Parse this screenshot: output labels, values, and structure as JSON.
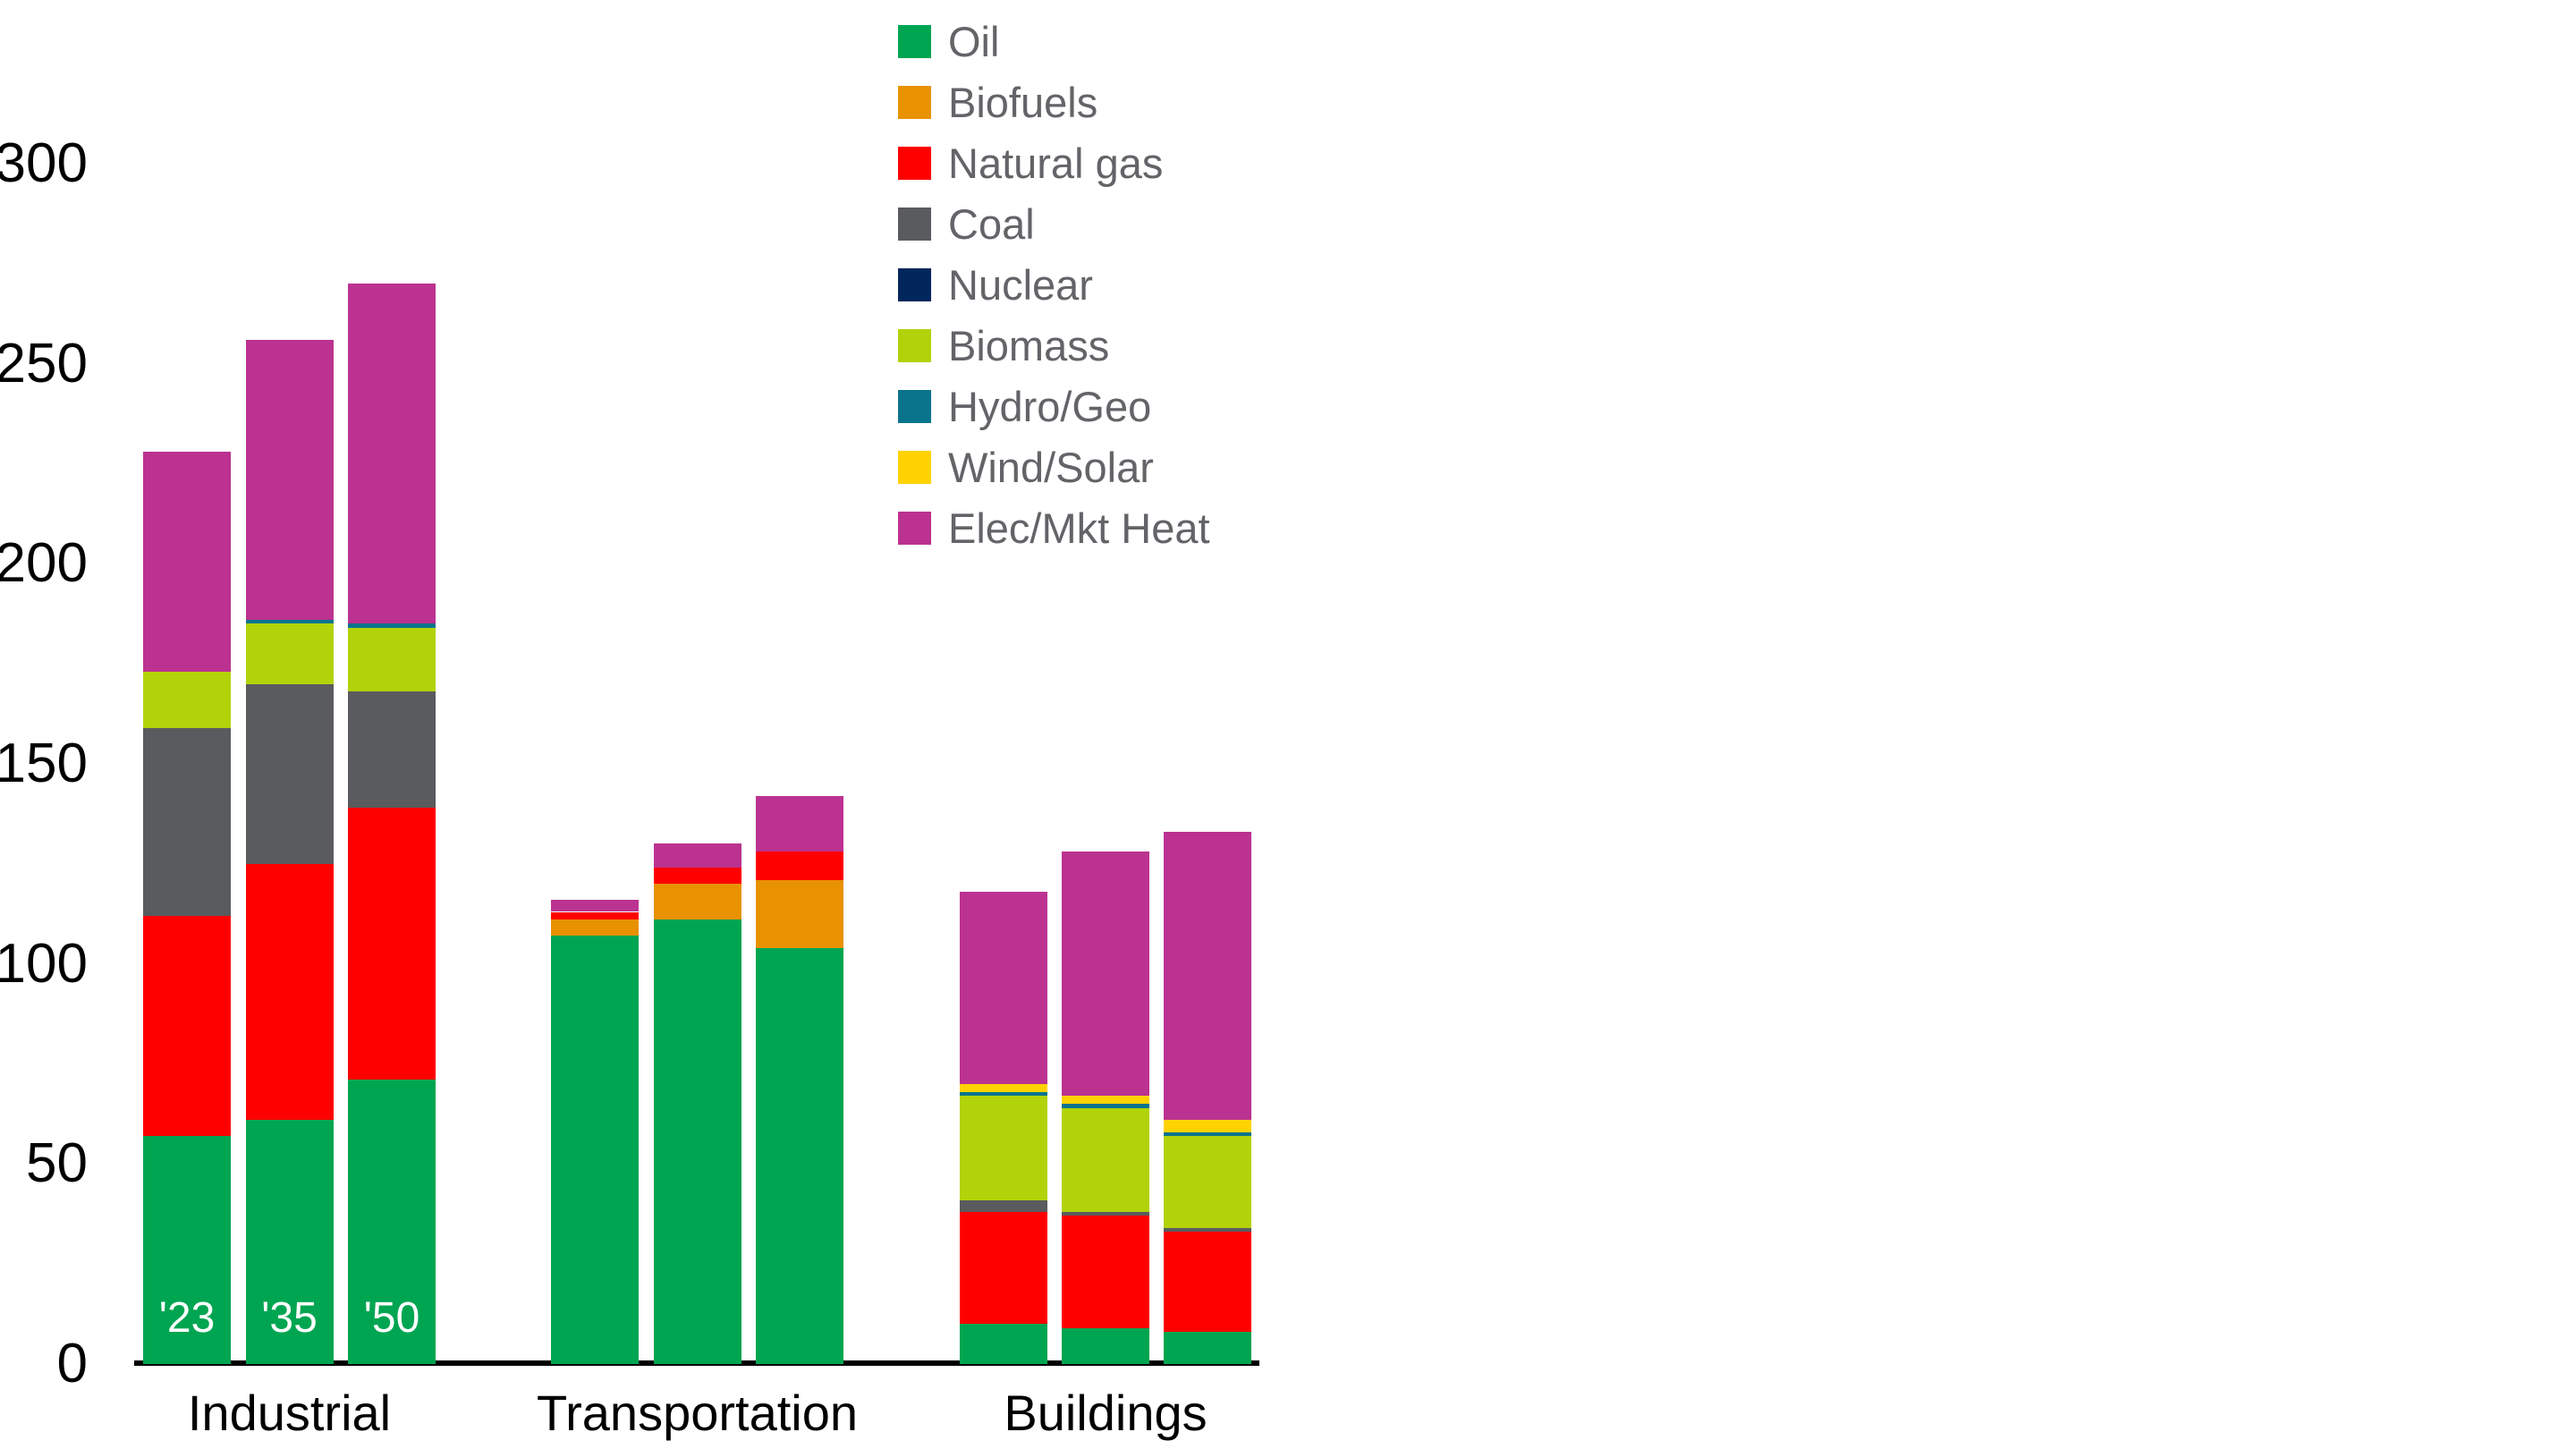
{
  "chart_data": {
    "type": "bar",
    "stacked": true,
    "grid": false,
    "legend_position": "top-center",
    "ylim": [
      0,
      300
    ],
    "yticks": [
      "0",
      "50",
      "100",
      "150",
      "200",
      "250",
      "300"
    ],
    "categories": [
      "Industrial",
      "Transportation",
      "Buildings"
    ],
    "bar_labels": [
      "'23",
      "'35",
      "'50"
    ],
    "bar_labels_visible_on_categories": [
      "Industrial"
    ],
    "series": [
      {
        "name": "Oil",
        "color": "#00A551",
        "values": [
          [
            57,
            61,
            71
          ],
          [
            107,
            111,
            104
          ],
          [
            10,
            9,
            8
          ]
        ]
      },
      {
        "name": "Biofuels",
        "color": "#E89202",
        "values": [
          [
            0,
            0,
            0
          ],
          [
            4,
            9,
            17
          ],
          [
            0,
            0,
            0
          ]
        ]
      },
      {
        "name": "Natural gas",
        "color": "#FF0000",
        "values": [
          [
            55,
            64,
            68
          ],
          [
            2,
            4,
            7
          ],
          [
            28,
            28,
            25
          ]
        ]
      },
      {
        "name": "Coal",
        "color": "#5A5B5E",
        "values": [
          [
            47,
            45,
            29
          ],
          [
            0,
            0,
            0
          ],
          [
            3,
            1,
            1
          ]
        ]
      },
      {
        "name": "Nuclear",
        "color": "#00265C",
        "values": [
          [
            0,
            0,
            0
          ],
          [
            0,
            0,
            0
          ],
          [
            0,
            0,
            0
          ]
        ]
      },
      {
        "name": "Biomass",
        "color": "#B2D20A",
        "values": [
          [
            14,
            15,
            16
          ],
          [
            0,
            0,
            0
          ],
          [
            26,
            26,
            23
          ]
        ]
      },
      {
        "name": "Hydro/Geo",
        "color": "#0A748C",
        "values": [
          [
            0,
            1,
            1
          ],
          [
            0,
            0,
            0
          ],
          [
            1,
            1,
            1
          ]
        ]
      },
      {
        "name": "Wind/Solar",
        "color": "#FFD200",
        "values": [
          [
            0,
            0,
            0
          ],
          [
            0,
            0,
            0
          ],
          [
            2,
            2,
            3
          ]
        ]
      },
      {
        "name": "Elec/Mkt Heat",
        "color": "#BB3290",
        "values": [
          [
            55,
            70,
            85
          ],
          [
            3,
            6,
            14
          ],
          [
            48,
            61,
            72
          ]
        ]
      }
    ],
    "bar_totals": [
      [
        228,
        256,
        270
      ],
      [
        116,
        130,
        142
      ],
      [
        118,
        128,
        133
      ]
    ]
  }
}
